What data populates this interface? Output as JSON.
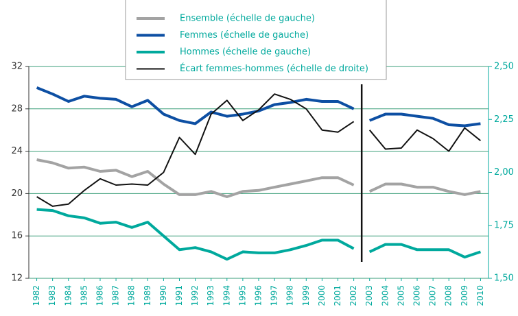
{
  "chart_data": {
    "type": "line",
    "categories": [
      "1982",
      "1983",
      "1984",
      "1985",
      "1986",
      "1987",
      "1988",
      "1989",
      "1990",
      "1991",
      "1992",
      "1993",
      "1994",
      "1995",
      "1996",
      "1997",
      "1998",
      "1999",
      "2000",
      "2001",
      "2002",
      "2003",
      "2004",
      "2005",
      "2006",
      "2007",
      "2008",
      "2009",
      "2010"
    ],
    "break_index": 21,
    "ylim": [
      12,
      32
    ],
    "yticks": [
      12,
      16,
      20,
      24,
      28,
      32
    ],
    "y2lim": [
      1.5,
      2.5
    ],
    "y2ticks": [
      {
        "value": 1.5,
        "label": "1,50"
      },
      {
        "value": 1.75,
        "label": "1,75"
      },
      {
        "value": 2.0,
        "label": "2,00"
      },
      {
        "value": 2.25,
        "label": "2,25"
      },
      {
        "value": 2.5,
        "label": "2,50"
      }
    ],
    "grid": true,
    "series": [
      {
        "name": "Ensemble (échelle de gauche)",
        "color": "#a3a3a3",
        "values": [
          23.2,
          22.9,
          22.4,
          22.5,
          22.1,
          22.2,
          21.6,
          22.1,
          20.9,
          19.9,
          19.9,
          20.2,
          19.7,
          20.2,
          20.3,
          20.6,
          20.9,
          21.2,
          21.5,
          21.5,
          20.8,
          20.2,
          20.9,
          20.9,
          20.6,
          20.6,
          20.2,
          19.9,
          20.2
        ]
      },
      {
        "name": "Femmes (échelle de gauche)",
        "color": "#0d4fa3",
        "values": [
          30.0,
          29.4,
          28.7,
          29.2,
          29.0,
          28.9,
          28.2,
          28.8,
          27.5,
          26.9,
          26.6,
          27.7,
          27.3,
          27.5,
          27.8,
          28.4,
          28.6,
          28.9,
          28.7,
          28.7,
          28.0,
          26.9,
          27.5,
          27.5,
          27.3,
          27.1,
          26.5,
          26.4,
          26.6
        ]
      },
      {
        "name": "Hommes (échelle de gauche)",
        "color": "#00a99d",
        "values": [
          18.5,
          18.4,
          17.9,
          17.7,
          17.2,
          17.3,
          16.8,
          17.3,
          16.0,
          14.7,
          14.9,
          14.5,
          13.8,
          14.5,
          14.4,
          14.4,
          14.7,
          15.1,
          15.6,
          15.6,
          14.8,
          14.5,
          15.2,
          15.2,
          14.7,
          14.7,
          14.7,
          14.0,
          14.5
        ]
      },
      {
        "name": "Écart femmes-hommes (échelle de droite)",
        "color": "#111111",
        "axis": "y2",
        "values": [
          1.885,
          1.84,
          1.85,
          1.915,
          1.97,
          1.94,
          1.945,
          1.94,
          2.0,
          2.165,
          2.085,
          2.275,
          2.34,
          2.245,
          2.295,
          2.37,
          2.345,
          2.3,
          2.2,
          2.19,
          2.24,
          2.2,
          2.11,
          2.115,
          2.2,
          2.16,
          2.1,
          2.21,
          2.15
        ]
      }
    ]
  }
}
